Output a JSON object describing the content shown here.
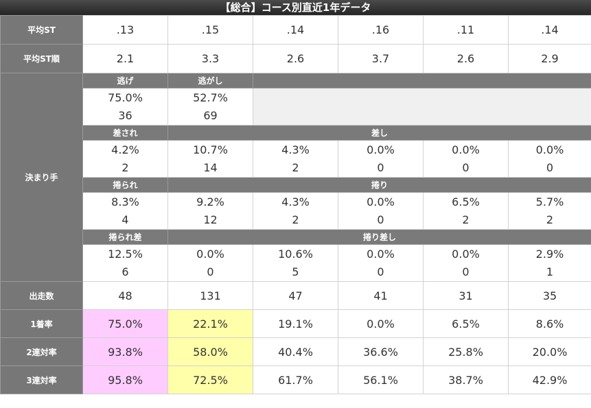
{
  "title": "【総合】コース別直近1年データ",
  "rows": {
    "avg_st": {
      "label": "平均ST",
      "values": [
        ".13",
        ".15",
        ".14",
        ".16",
        ".11",
        ".14"
      ]
    },
    "avg_st_rank": {
      "label": "平均ST順",
      "values": [
        "2.1",
        "3.3",
        "2.6",
        "3.7",
        "2.6",
        "2.9"
      ]
    },
    "kimarite": {
      "label": "決まり手",
      "nige_header": "逃げ",
      "nigashi_header": "逃がし",
      "nige": {
        "pct": "75.0%",
        "count": "36"
      },
      "nigashi": {
        "pct": "52.7%",
        "count": "69"
      },
      "sasare_header": "差され",
      "sashi_header": "差し",
      "sashi_row": [
        {
          "pct": "4.2%",
          "count": "2"
        },
        {
          "pct": "10.7%",
          "count": "14"
        },
        {
          "pct": "4.3%",
          "count": "2"
        },
        {
          "pct": "0.0%",
          "count": "0"
        },
        {
          "pct": "0.0%",
          "count": "0"
        },
        {
          "pct": "0.0%",
          "count": "0"
        }
      ],
      "makurare_header": "捲られ",
      "makuri_header": "捲り",
      "makuri_row": [
        {
          "pct": "8.3%",
          "count": "4"
        },
        {
          "pct": "9.2%",
          "count": "12"
        },
        {
          "pct": "4.3%",
          "count": "2"
        },
        {
          "pct": "0.0%",
          "count": "0"
        },
        {
          "pct": "6.5%",
          "count": "2"
        },
        {
          "pct": "5.7%",
          "count": "2"
        }
      ],
      "makurarezashi_header": "捲られ差",
      "makurizashi_header": "捲り差し",
      "makurizashi_row": [
        {
          "pct": "12.5%",
          "count": "6"
        },
        {
          "pct": "0.0%",
          "count": "0"
        },
        {
          "pct": "10.6%",
          "count": "5"
        },
        {
          "pct": "0.0%",
          "count": "0"
        },
        {
          "pct": "0.0%",
          "count": "0"
        },
        {
          "pct": "2.9%",
          "count": "1"
        }
      ]
    },
    "starts": {
      "label": "出走数",
      "values": [
        "48",
        "131",
        "47",
        "41",
        "31",
        "35"
      ]
    },
    "win_rate": {
      "label": "1着率",
      "values": [
        "75.0%",
        "22.1%",
        "19.1%",
        "0.0%",
        "6.5%",
        "8.6%"
      ]
    },
    "quinella_rate": {
      "label": "2連対率",
      "values": [
        "93.8%",
        "58.0%",
        "40.4%",
        "36.6%",
        "25.8%",
        "20.0%"
      ]
    },
    "trio_rate": {
      "label": "3連対率",
      "values": [
        "95.8%",
        "72.5%",
        "61.7%",
        "56.1%",
        "38.7%",
        "42.9%"
      ]
    }
  },
  "colors": {
    "highlight_first": "#ffccff",
    "highlight_second": "#ffffaa",
    "label_bg": "#777777"
  }
}
